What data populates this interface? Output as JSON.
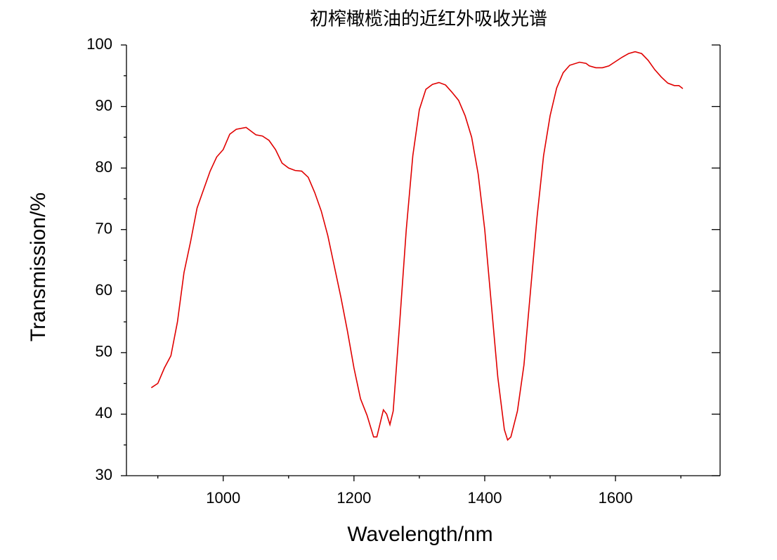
{
  "chart_data": {
    "type": "line",
    "title": "初榨橄榄油的近红外吸收光谱",
    "x_label": "Wavelength/nm",
    "y_label": "Transmission/%",
    "x": [
      890,
      900,
      910,
      920,
      930,
      940,
      950,
      960,
      970,
      980,
      990,
      1000,
      1010,
      1020,
      1035,
      1045,
      1050,
      1060,
      1070,
      1080,
      1090,
      1100,
      1110,
      1120,
      1130,
      1140,
      1150,
      1160,
      1170,
      1180,
      1190,
      1200,
      1210,
      1220,
      1230,
      1235,
      1240,
      1245,
      1250,
      1255,
      1260,
      1270,
      1280,
      1290,
      1300,
      1310,
      1320,
      1330,
      1340,
      1350,
      1360,
      1370,
      1380,
      1390,
      1400,
      1410,
      1420,
      1430,
      1435,
      1440,
      1450,
      1460,
      1470,
      1480,
      1490,
      1500,
      1510,
      1520,
      1530,
      1545,
      1555,
      1560,
      1570,
      1580,
      1590,
      1600,
      1610,
      1620,
      1630,
      1640,
      1650,
      1660,
      1670,
      1680,
      1690,
      1697,
      1703
    ],
    "series": [
      {
        "color": "#e00000",
        "values": [
          44.3,
          45,
          47.5,
          49.5,
          55,
          63,
          68,
          73.5,
          76.5,
          79.5,
          81.8,
          83,
          85.5,
          86.3,
          86.6,
          85.8,
          85.4,
          85.2,
          84.5,
          83,
          80.8,
          80,
          79.6,
          79.5,
          78.5,
          76,
          73,
          69,
          64,
          59,
          53.5,
          47.5,
          42.5,
          39.8,
          36.3,
          36.3,
          38.5,
          40.7,
          40,
          38.3,
          40.5,
          55,
          70,
          82,
          89.5,
          92.8,
          93.6,
          93.9,
          93.5,
          92.3,
          91,
          88.5,
          85,
          79,
          70,
          58,
          46,
          37.5,
          35.8,
          36.3,
          40.5,
          48,
          60,
          72,
          82,
          88.5,
          93,
          95.5,
          96.7,
          97.2,
          97,
          96.6,
          96.3,
          96.3,
          96.6,
          97.3,
          98,
          98.6,
          98.9,
          98.6,
          97.5,
          96,
          94.8,
          93.8,
          93.4,
          93.4,
          92.9
        ]
      }
    ],
    "xlim": [
      852,
      1760
    ],
    "ylim": [
      30,
      100
    ],
    "xticks": [
      1000,
      1200,
      1400,
      1600
    ],
    "yticks": [
      30,
      40,
      50,
      60,
      70,
      80,
      90,
      100
    ],
    "xminorticks": [
      900,
      1100,
      1300,
      1500,
      1700
    ],
    "yminorticks": [
      35,
      45,
      55,
      65,
      75,
      85,
      95
    ],
    "grid": false
  }
}
